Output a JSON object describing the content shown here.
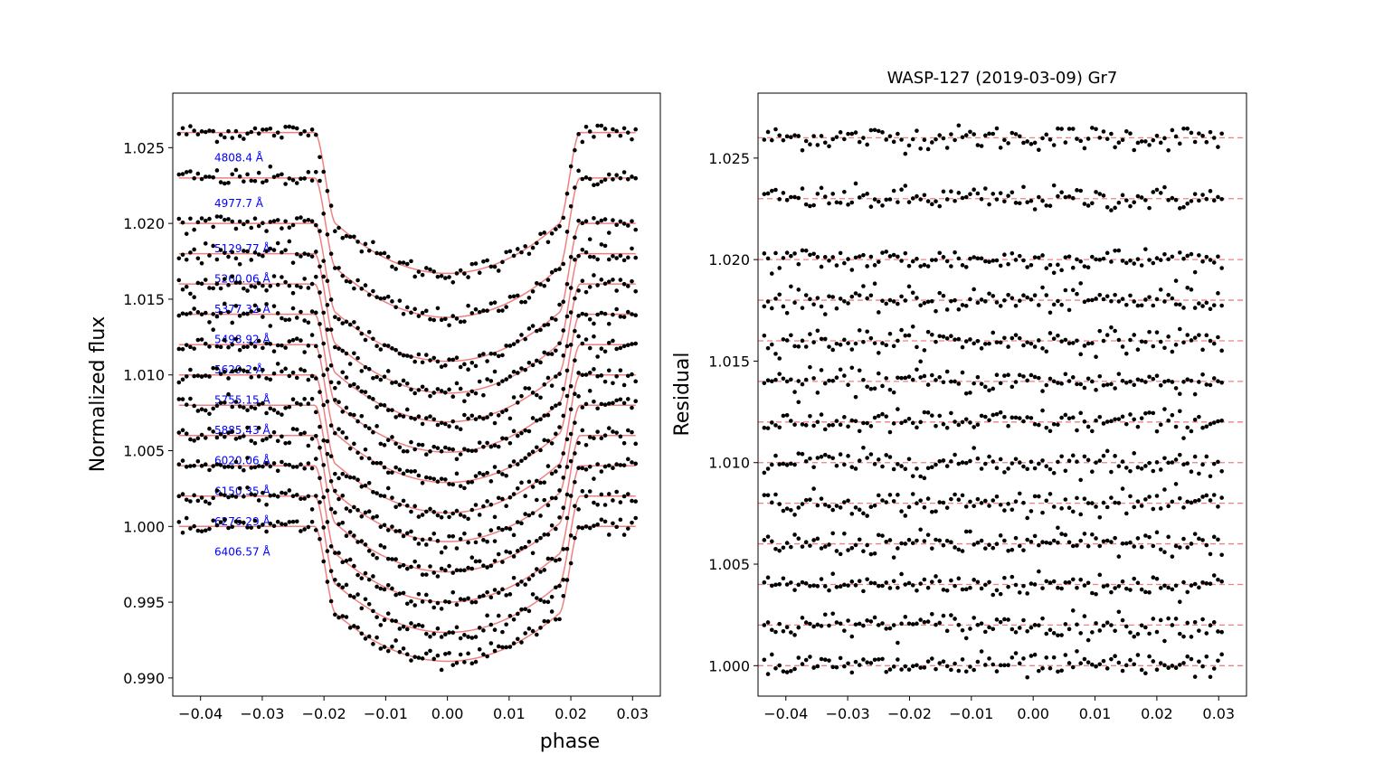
{
  "figure": {
    "suptitle": "WASP-127 (2019-03-09) Gr7"
  },
  "chart_data": [
    {
      "type": "scatter",
      "panel": "left",
      "title": "",
      "xlabel": "phase",
      "ylabel": "Normalized flux",
      "xlim": [
        -0.0445,
        0.0345
      ],
      "ylim": [
        0.9888,
        1.0286
      ],
      "xticks": [
        -0.04,
        -0.03,
        -0.02,
        -0.01,
        0.0,
        0.01,
        0.02,
        0.03
      ],
      "xtick_labels": [
        "−0.04",
        "−0.03",
        "−0.02",
        "−0.01",
        "0.00",
        "0.01",
        "0.02",
        "0.03"
      ],
      "yticks": [
        0.99,
        0.995,
        1.0,
        1.005,
        1.01,
        1.015,
        1.02,
        1.025
      ],
      "ytick_labels": [
        "0.990",
        "0.995",
        "1.000",
        "1.005",
        "1.010",
        "1.015",
        "1.020",
        "1.025"
      ],
      "grid": false,
      "model_color": "#f08080",
      "point_color": "#000000",
      "label_color": "#0000ff",
      "transit": {
        "t1": -0.0215,
        "t2": -0.018,
        "t3": 0.018,
        "t4": 0.0215,
        "x_start": -0.0435,
        "x_end": 0.0305,
        "n_points": 121
      },
      "series": [
        {
          "name": "4808.4 Å",
          "baseline": 1.026,
          "depth": 0.0093
        },
        {
          "name": "4977.7 Å",
          "baseline": 1.023,
          "depth": 0.0092
        },
        {
          "name": "5129.77 Å",
          "baseline": 1.02,
          "depth": 0.0091
        },
        {
          "name": "5260.06 Å",
          "baseline": 1.018,
          "depth": 0.0092
        },
        {
          "name": "5377.32 Å",
          "baseline": 1.016,
          "depth": 0.0091
        },
        {
          "name": "5498.92 Å",
          "baseline": 1.014,
          "depth": 0.0091
        },
        {
          "name": "5629.2 Å",
          "baseline": 1.012,
          "depth": 0.0091
        },
        {
          "name": "5755.15 Å",
          "baseline": 1.01,
          "depth": 0.0091
        },
        {
          "name": "5885.43 Å",
          "baseline": 1.008,
          "depth": 0.009
        },
        {
          "name": "6020.06 Å",
          "baseline": 1.006,
          "depth": 0.009
        },
        {
          "name": "6150.35 Å",
          "baseline": 1.004,
          "depth": 0.009
        },
        {
          "name": "6276.29 Å",
          "baseline": 1.002,
          "depth": 0.009
        },
        {
          "name": "6406.57 Å",
          "baseline": 1.0,
          "depth": 0.0089
        }
      ]
    },
    {
      "type": "scatter",
      "panel": "right",
      "title": "WASP-127 (2019-03-09) Gr7",
      "xlabel": "",
      "ylabel": "Residual",
      "xlim": [
        -0.0445,
        0.0345
      ],
      "ylim": [
        0.9985,
        1.0282
      ],
      "xticks": [
        -0.04,
        -0.03,
        -0.02,
        -0.01,
        0.0,
        0.01,
        0.02,
        0.03
      ],
      "xtick_labels": [
        "−0.04",
        "−0.03",
        "−0.02",
        "−0.01",
        "0.00",
        "0.01",
        "0.02",
        "0.03"
      ],
      "yticks": [
        1.0,
        1.005,
        1.01,
        1.015,
        1.02,
        1.025
      ],
      "ytick_labels": [
        "1.000",
        "1.005",
        "1.010",
        "1.015",
        "1.020",
        "1.025"
      ],
      "grid": false,
      "reference_line_style": "dashed",
      "reference_levels": [
        1.026,
        1.023,
        1.02,
        1.018,
        1.016,
        1.014,
        1.012,
        1.01,
        1.008,
        1.006,
        1.004,
        1.002,
        1.0
      ],
      "scatter_sigma": 0.0003
    }
  ]
}
